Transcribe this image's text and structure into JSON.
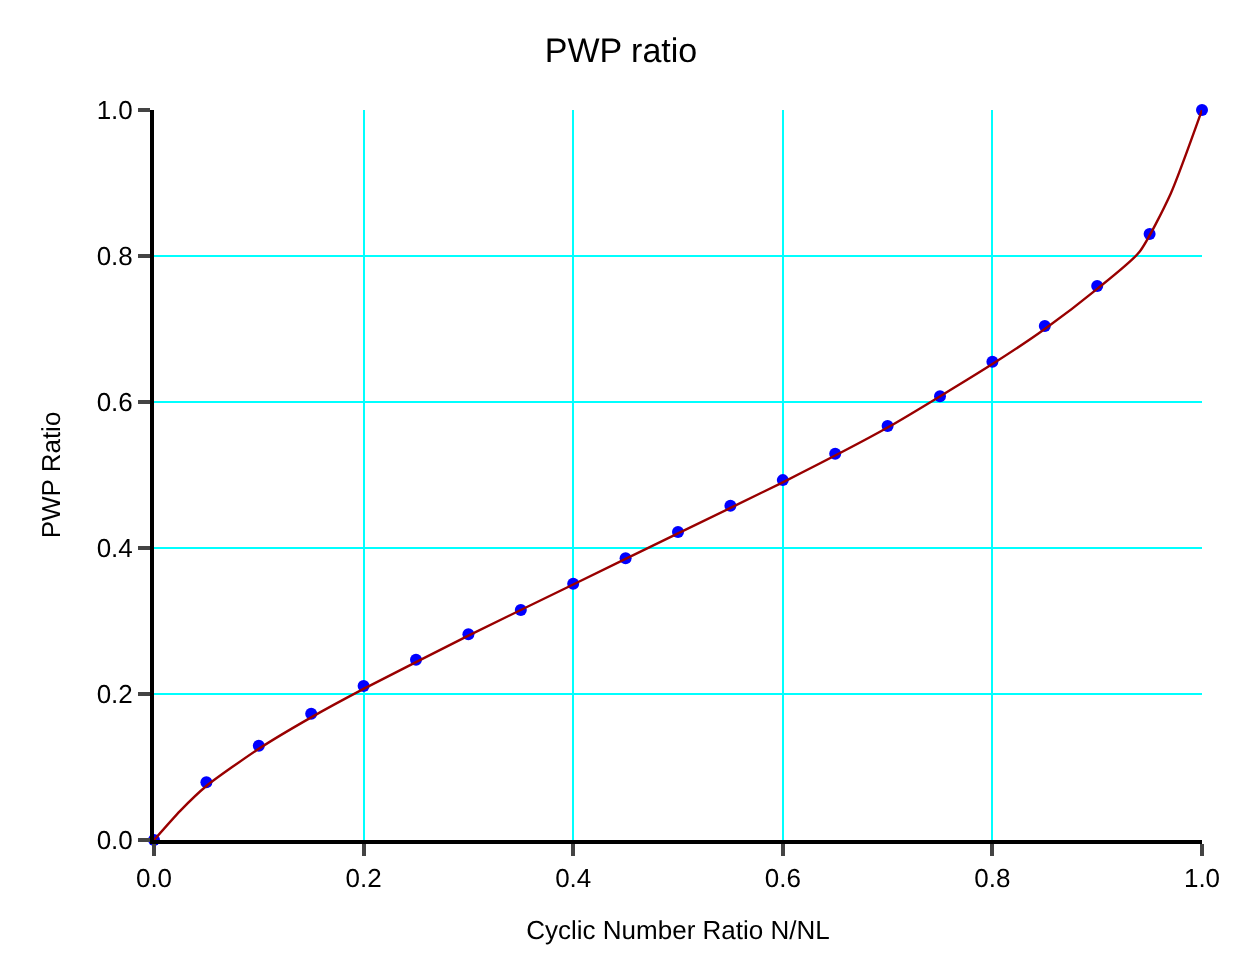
{
  "chart_data": {
    "type": "scatter",
    "title": "PWP ratio",
    "xlabel": "Cyclic Number Ratio N/NL",
    "ylabel": "PWP Ratio",
    "x": [
      0,
      0.05,
      0.1,
      0.15,
      0.2,
      0.25,
      0.3,
      0.35,
      0.4,
      0.45,
      0.5,
      0.55,
      0.6,
      0.65,
      0.7,
      0.75,
      0.8,
      0.85,
      0.9,
      0.95,
      1.0
    ],
    "series": [
      {
        "color": "#0000ff",
        "marker": "circle",
        "values": [
          0,
          0.079,
          0.129,
          0.173,
          0.211,
          0.247,
          0.282,
          0.315,
          0.351,
          0.386,
          0.422,
          0.458,
          0.493,
          0.529,
          0.567,
          0.608,
          0.655,
          0.704,
          0.759,
          0.83,
          1.0
        ]
      },
      {
        "type": "line",
        "color": "#990000",
        "line_style": "solid",
        "marker": "none",
        "x": [
          0,
          0.025,
          0.05,
          0.1,
          0.15,
          0.2,
          0.3,
          0.4,
          0.5,
          0.6,
          0.7,
          0.8,
          0.85,
          0.9,
          0.94,
          0.97,
          1.0
        ],
        "values": [
          0,
          0.04,
          0.074,
          0.125,
          0.168,
          0.207,
          0.28,
          0.35,
          0.42,
          0.49,
          0.565,
          0.652,
          0.7,
          0.755,
          0.805,
          0.885,
          1.0
        ]
      }
    ],
    "xlim": [
      0,
      1.0
    ],
    "ylim": [
      0,
      1.0
    ],
    "xticks": [
      {
        "value": 0,
        "label": "0.0"
      },
      0.2,
      0.4,
      0.6,
      0.8,
      {
        "value": 1.0,
        "label": "1.0"
      }
    ],
    "yticks": [
      {
        "value": 0,
        "label": "0.0"
      },
      0.2,
      0.4,
      0.6,
      0.8,
      {
        "value": 1.0,
        "label": "1.0"
      }
    ],
    "grid": true,
    "legend": false
  }
}
